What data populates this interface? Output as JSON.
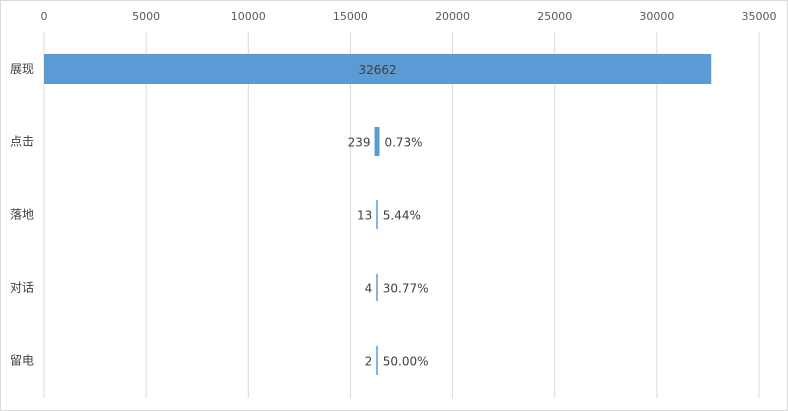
{
  "chart_data": {
    "type": "bar",
    "orientation": "horizontal",
    "title": "",
    "xlabel": "",
    "ylabel": "",
    "xlim": [
      0,
      35000
    ],
    "xticks": [
      "0",
      "5000",
      "10000",
      "15000",
      "20000",
      "25000",
      "30000",
      "35000"
    ],
    "x_axis_position": "top",
    "grid": true,
    "legend": "none",
    "bar_color": "#5b9bd5",
    "categories": [
      "展现",
      "点击",
      "落地",
      "对话",
      "留电"
    ],
    "values": [
      32662,
      239,
      13,
      4,
      2
    ],
    "value_labels": [
      "32662",
      "239",
      "13",
      "4",
      "2"
    ],
    "rate_labels": [
      "",
      "0.73%",
      "5.44%",
      "30.77%",
      "50.00%"
    ]
  }
}
